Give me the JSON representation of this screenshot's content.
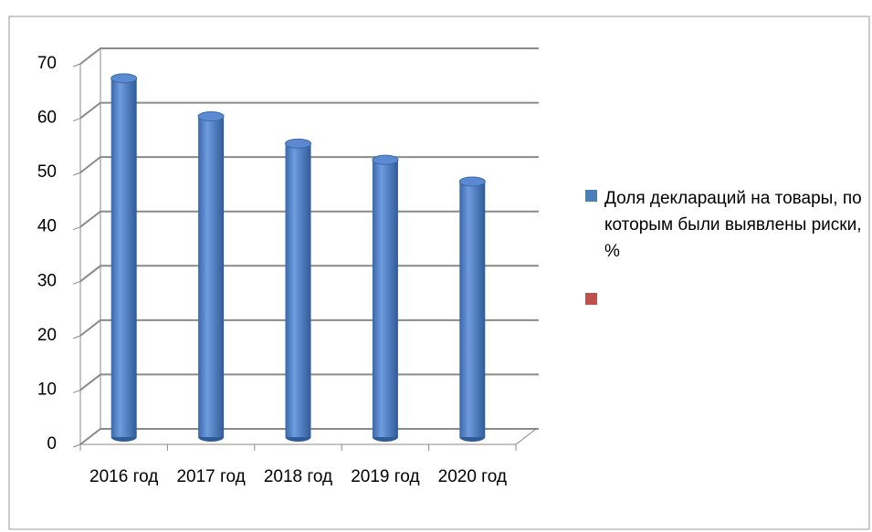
{
  "chart_data": {
    "type": "bar",
    "categories": [
      "2016 год",
      "2017 год",
      "2018 год",
      "2019 год",
      "2020 год"
    ],
    "series": [
      {
        "name": "Доля деклараций на товары, по которым были выявлены риски, %",
        "color": "#4a7ebb",
        "values": [
          66,
          59,
          54,
          51,
          47
        ]
      }
    ],
    "ylim": [
      0,
      70
    ],
    "yticks": [
      0,
      10,
      20,
      30,
      40,
      50,
      60,
      70
    ],
    "grid": true
  }
}
